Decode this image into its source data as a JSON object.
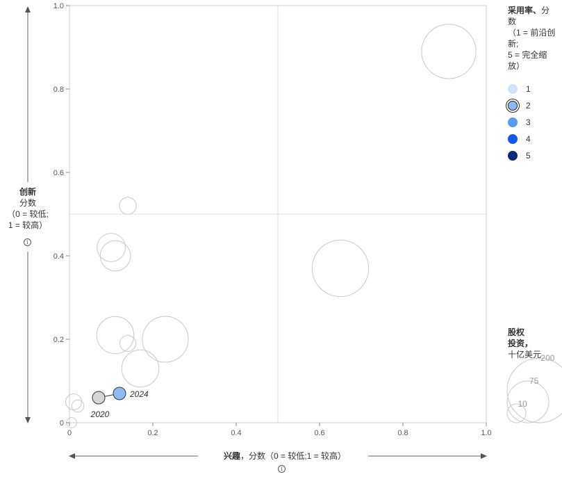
{
  "chart_data": {
    "type": "scatter",
    "xlabel_bold": "兴趣",
    "xlabel_rest": "，分数（0 = 较低;1 = 较高）",
    "ylabel_bold": "创新",
    "ylabel_rest": "分数\n（0 = 较低;\n1 = 较高）",
    "xlim": [
      0,
      1
    ],
    "ylim": [
      0,
      1
    ],
    "x_ticks": [
      "0",
      "0.2",
      "0.4",
      "0.6",
      "0.8",
      "1.0"
    ],
    "y_ticks": [
      "0",
      "0.2",
      "0.4",
      "0.6",
      "0.8",
      "1.0"
    ],
    "quadrant_dividers": {
      "x": 0.5,
      "y": 0.5
    },
    "bubbles": [
      {
        "x": 0.91,
        "y": 0.89,
        "investment": 110
      },
      {
        "x": 0.65,
        "y": 0.37,
        "investment": 120
      },
      {
        "x": 0.23,
        "y": 0.2,
        "investment": 75
      },
      {
        "x": 0.17,
        "y": 0.13,
        "investment": 46
      },
      {
        "x": 0.11,
        "y": 0.21,
        "investment": 46
      },
      {
        "x": 0.11,
        "y": 0.4,
        "investment": 28
      },
      {
        "x": 0.1,
        "y": 0.42,
        "investment": 24
      },
      {
        "x": 0.14,
        "y": 0.52,
        "investment": 6
      },
      {
        "x": 0.14,
        "y": 0.19,
        "investment": 5
      },
      {
        "x": 0.01,
        "y": 0.05,
        "investment": 5
      },
      {
        "x": 0.02,
        "y": 0.04,
        "investment": 2
      },
      {
        "x": 0.005,
        "y": 0.0,
        "investment": 1
      }
    ],
    "highlight": {
      "points": [
        {
          "label": "2020",
          "x": 0.07,
          "y": 0.06,
          "adoption": "gray"
        },
        {
          "label": "2024",
          "x": 0.12,
          "y": 0.07,
          "adoption": "2"
        }
      ]
    },
    "legend": {
      "adoption_title_bold": "采用率、",
      "adoption_title_rest": "分数\n（1 = 前沿创新;\n5 = 完全缩放）",
      "items": [
        {
          "label": "1",
          "color": "#cfe3fb"
        },
        {
          "label": "2",
          "color": "#8fb9f5"
        },
        {
          "label": "3",
          "color": "#5b9af0"
        },
        {
          "label": "4",
          "color": "#1259e6"
        },
        {
          "label": "5",
          "color": "#0b2a78"
        }
      ],
      "size_title_bold": "股权\n投资，",
      "size_title_rest": "十亿美元",
      "size_values": [
        200,
        75,
        10
      ]
    },
    "colors": {
      "highlight_2020": "#d6d6d6",
      "highlight_2024": "#8fb9f5",
      "bubble_outline": "#c8c8c8"
    }
  }
}
